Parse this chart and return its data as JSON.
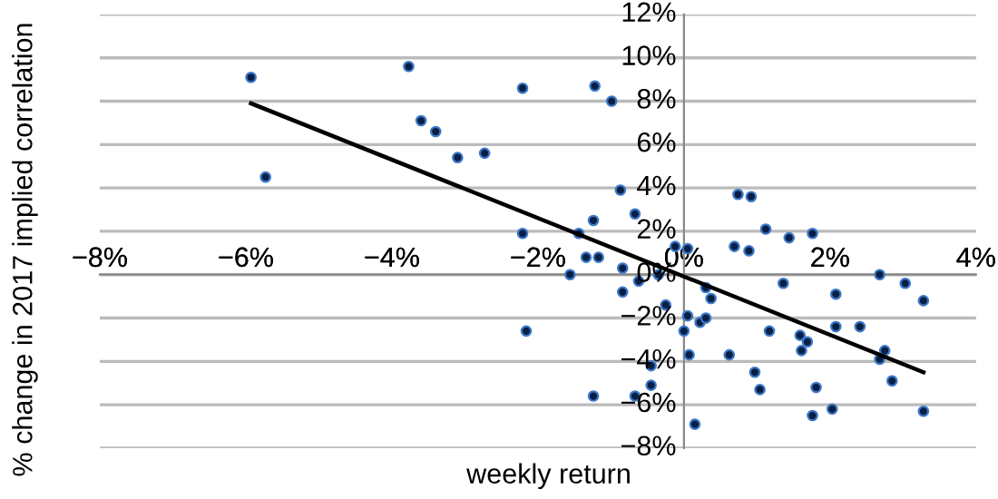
{
  "chart_data": {
    "type": "scatter",
    "xlabel": "weekly return",
    "ylabel": "% change in 2017 implied correlation",
    "xlim": [
      -8,
      4
    ],
    "ylim": [
      -8,
      12
    ],
    "xticks": [
      {
        "value": -8,
        "label": "−8%"
      },
      {
        "value": -6,
        "label": "−6%"
      },
      {
        "value": -4,
        "label": "−4%"
      },
      {
        "value": -2,
        "label": "−2%"
      },
      {
        "value": 0,
        "label": "0%"
      },
      {
        "value": 2,
        "label": "2%"
      },
      {
        "value": 4,
        "label": "4%"
      }
    ],
    "yticks": [
      {
        "value": -8,
        "label": "−8%"
      },
      {
        "value": -6,
        "label": "−6%"
      },
      {
        "value": -4,
        "label": "−4%"
      },
      {
        "value": -2,
        "label": "−2%"
      },
      {
        "value": 0,
        "label": "0%"
      },
      {
        "value": 2,
        "label": "2%"
      },
      {
        "value": 4,
        "label": "4%"
      },
      {
        "value": 6,
        "label": "6%"
      },
      {
        "value": 8,
        "label": "8%"
      },
      {
        "value": 10,
        "label": "10%"
      },
      {
        "value": 12,
        "label": "12%"
      }
    ],
    "grid": "y",
    "series": [
      {
        "color": "#0a1f44",
        "marker": "circle",
        "x": [
          -5.93,
          -5.73,
          -3.77,
          -3.6,
          -3.4,
          -3.1,
          -2.73,
          -2.21,
          -2.21,
          -1.22,
          -0.99,
          -0.87,
          -0.67,
          -1.24,
          -1.44,
          -1.34,
          -1.17,
          -0.12,
          0.05,
          0.74,
          0.92,
          0.69,
          0.89,
          1.12,
          1.44,
          1.76,
          -1.56,
          -2.16,
          -0.84,
          -0.62,
          -0.84,
          -0.35,
          -0.25,
          -0.45,
          -0.45,
          -0.67,
          -1.24,
          0.05,
          0.22,
          0.3,
          0,
          0.07,
          0.15,
          0.3,
          0.37,
          0.62,
          0.97,
          1.04,
          1.17,
          1.36,
          1.59,
          1.61,
          1.69,
          1.81,
          1.76,
          2.03,
          2.08,
          2.08,
          2.41,
          2.68,
          3.03,
          3.28,
          2.75,
          2.68,
          2.85,
          3.28
        ],
        "values": [
          9.1,
          4.5,
          9.6,
          7.1,
          6.6,
          5.4,
          5.6,
          8.6,
          1.9,
          8.7,
          8.0,
          3.9,
          2.8,
          2.5,
          1.9,
          0.8,
          0.8,
          1.3,
          1.2,
          3.7,
          3.6,
          1.3,
          1.1,
          2.1,
          1.7,
          1.9,
          0,
          -2.6,
          -0.8,
          -0.3,
          0.3,
          0,
          -1.4,
          -4.2,
          -5.1,
          -5.6,
          -5.6,
          -1.9,
          -2.2,
          -2.0,
          -2.6,
          -3.7,
          -6.9,
          -0.6,
          -1.1,
          -3.7,
          -4.5,
          -5.3,
          -2.6,
          -0.4,
          -2.8,
          -3.5,
          -3.1,
          -5.2,
          -6.5,
          -6.2,
          -0.9,
          -2.4,
          -2.4,
          0,
          -0.4,
          -1.2,
          -3.5,
          -3.9,
          -4.9,
          -6.3
        ]
      },
      {
        "type": "line",
        "color": "#000000",
        "x": [
          -5.93,
          3.28
        ],
        "values": [
          7.9,
          -4.5
        ]
      }
    ]
  }
}
